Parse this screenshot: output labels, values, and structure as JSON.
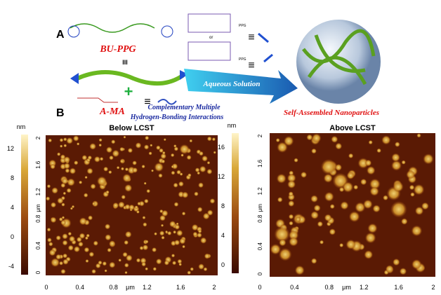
{
  "panel_a": {
    "label": "A",
    "polymer": "BU-PPG",
    "polymer_symbol": "III",
    "plus": "+",
    "monomer": "A-MA",
    "equiv_1": "≡",
    "equiv_2": "≡",
    "equiv_3": "≡",
    "group_1": "PPG",
    "group_2": "PPG",
    "or": "or",
    "process": "Aqueous Solution",
    "interaction_1": "Complementary Multiple",
    "interaction_2": "Hydrogen-Bonding Interactions",
    "product": "Self-Assembled Nanoparticles"
  },
  "panel_b": {
    "label": "B",
    "images": [
      {
        "title": "Below LCST",
        "colorbar_unit": "nm",
        "colorbar_ticks": [
          12,
          8,
          4,
          0,
          -4
        ],
        "y_ticks": [
          2,
          1.6,
          1.2,
          0.8,
          0.4,
          0
        ],
        "y_unit": "μm",
        "x_ticks": [
          0,
          0.4,
          0.8,
          1.2,
          1.6,
          2
        ],
        "x_unit": "μm"
      },
      {
        "title": "Above LCST",
        "colorbar_unit": "nm",
        "colorbar_ticks": [
          16,
          12,
          8,
          4,
          0
        ],
        "y_ticks": [
          2,
          1.6,
          1.2,
          0.8,
          0.4,
          0
        ],
        "y_unit": "μm",
        "x_ticks": [
          0,
          0.4,
          0.8,
          1.2,
          1.6,
          2
        ],
        "x_unit": "μm"
      }
    ]
  }
}
